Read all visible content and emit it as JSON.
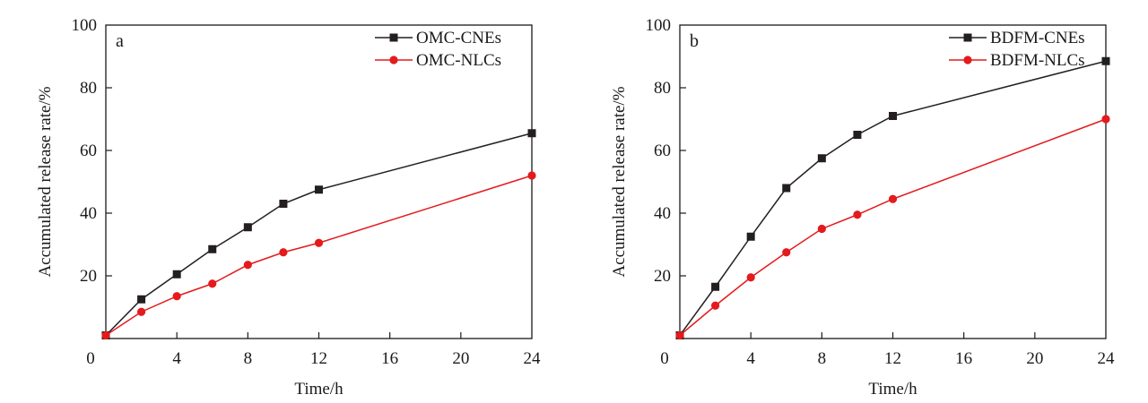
{
  "colors": {
    "black_series": "#231f20",
    "red_series": "#e41a1c",
    "axis": "#1a1a1a"
  },
  "chart_data": [
    {
      "type": "line",
      "panel_label": "a",
      "xlabel": "Time/h",
      "ylabel": "Accumulated release rate/%",
      "xticks": [
        "0",
        "4",
        "8",
        "12",
        "16",
        "20",
        "24"
      ],
      "yticks": [
        "20",
        "40",
        "60",
        "80",
        "100"
      ],
      "x_category_positions": [
        0,
        4,
        8,
        12,
        16,
        20,
        24
      ],
      "ylim": [
        0,
        100
      ],
      "legend_position": "top-right",
      "series": [
        {
          "name": "OMC-CNEs",
          "marker": "square",
          "color": "#231f20",
          "x": [
            0,
            2,
            4,
            6,
            8,
            10,
            12,
            24
          ],
          "y": [
            1,
            12.5,
            20.5,
            28.5,
            35.5,
            43,
            47.5,
            65.5
          ]
        },
        {
          "name": "OMC-NLCs",
          "marker": "circle",
          "color": "#e41a1c",
          "x": [
            0,
            2,
            4,
            6,
            8,
            10,
            12,
            24
          ],
          "y": [
            1,
            8.5,
            13.5,
            17.5,
            23.5,
            27.5,
            30.5,
            52
          ]
        }
      ]
    },
    {
      "type": "line",
      "panel_label": "b",
      "xlabel": "Time/h",
      "ylabel": "Accumulated release rate/%",
      "xticks": [
        "0",
        "4",
        "8",
        "12",
        "16",
        "20",
        "24"
      ],
      "yticks": [
        "20",
        "40",
        "60",
        "80",
        "100"
      ],
      "x_category_positions": [
        0,
        4,
        8,
        12,
        16,
        20,
        24
      ],
      "ylim": [
        0,
        100
      ],
      "legend_position": "top-right",
      "series": [
        {
          "name": "BDFM-CNEs",
          "marker": "square",
          "color": "#231f20",
          "x": [
            0,
            2,
            4,
            6,
            8,
            10,
            12,
            24
          ],
          "y": [
            1,
            16.5,
            32.5,
            48,
            57.5,
            65,
            71,
            88.5
          ]
        },
        {
          "name": "BDFM-NLCs",
          "marker": "circle",
          "color": "#e41a1c",
          "x": [
            0,
            2,
            4,
            6,
            8,
            10,
            12,
            24
          ],
          "y": [
            1,
            10.5,
            19.5,
            27.5,
            35,
            39.5,
            44.5,
            70
          ]
        }
      ]
    }
  ]
}
